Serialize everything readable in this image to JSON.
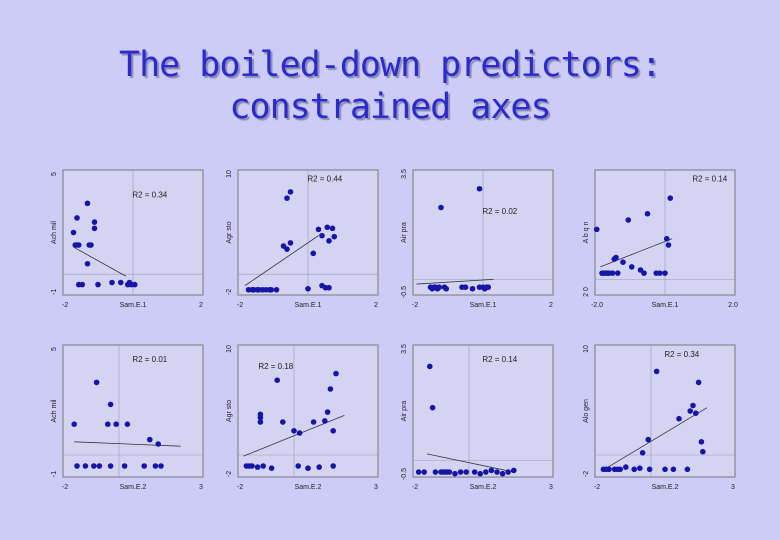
{
  "title": {
    "line1": "The boiled-down predictors:",
    "line2": "constrained axes"
  },
  "colors": {
    "background": "#ccccf6",
    "title": "#2a2ad0",
    "point": "#1515a8",
    "plot_bg": "#d4d4f2",
    "axis": "#777777",
    "text": "#222222"
  },
  "chart_data": [
    {
      "type": "scatter",
      "xlabel": "Sam.E.1",
      "ylabel": "Ach mil",
      "xlim": [
        -2,
        2
      ],
      "ylim": [
        -1,
        5
      ],
      "xtick_labels": [
        "-2",
        "Sam.E.1",
        "2"
      ],
      "ytick_labels": [
        "-1",
        "Ach mil",
        "5"
      ],
      "annotation": "R2 = 0.34",
      "fit": [
        [
          -1.7,
          1.3
        ],
        [
          -0.2,
          -0.1
        ]
      ],
      "points": [
        [
          -1.3,
          3.4
        ],
        [
          -1.1,
          2.5
        ],
        [
          -1.1,
          2.2
        ],
        [
          -1.2,
          1.4
        ],
        [
          -1.25,
          1.4
        ],
        [
          -1.3,
          0.5
        ],
        [
          -1.45,
          -0.5
        ],
        [
          -1.55,
          1.4
        ],
        [
          -1.6,
          1.4
        ],
        [
          -1.65,
          1.4
        ],
        [
          -1.7,
          2.0
        ],
        [
          -1.6,
          2.7
        ],
        [
          -1.55,
          -0.5
        ],
        [
          -1.0,
          -0.5
        ],
        [
          -0.6,
          -0.4
        ],
        [
          -0.35,
          -0.4
        ],
        [
          -0.15,
          -0.5
        ],
        [
          -0.05,
          -0.5
        ],
        [
          0.05,
          -0.5
        ],
        [
          -0.1,
          -0.4
        ]
      ]
    },
    {
      "type": "scatter",
      "xlabel": "Sam.E.1",
      "ylabel": "Agr sto",
      "xlim": [
        -2,
        2
      ],
      "ylim": [
        -2,
        10
      ],
      "xtick_labels": [
        "-2",
        "Sam.E.1",
        "2"
      ],
      "ytick_labels": [
        "-2",
        "Agr sto",
        "10"
      ],
      "annotation": "R2 = 0.44",
      "fit": [
        [
          -1.8,
          -1.1
        ],
        [
          0.3,
          3.7
        ]
      ],
      "points": [
        [
          -1.7,
          -1.5
        ],
        [
          -1.6,
          -1.5
        ],
        [
          -1.55,
          -1.5
        ],
        [
          -1.45,
          -1.5
        ],
        [
          -1.4,
          -1.5
        ],
        [
          -1.3,
          -1.5
        ],
        [
          -1.2,
          -1.5
        ],
        [
          -1.1,
          -1.5
        ],
        [
          -1.05,
          -1.5
        ],
        [
          -0.9,
          -1.5
        ],
        [
          -0.6,
          7.3
        ],
        [
          -0.5,
          7.9
        ],
        [
          -0.5,
          3.0
        ],
        [
          -0.7,
          2.7
        ],
        [
          -0.6,
          2.4
        ],
        [
          0.0,
          -1.4
        ],
        [
          0.15,
          2.0
        ],
        [
          0.3,
          4.3
        ],
        [
          0.4,
          3.7
        ],
        [
          0.55,
          4.5
        ],
        [
          0.6,
          3.2
        ],
        [
          0.4,
          -1.1
        ],
        [
          0.7,
          4.4
        ],
        [
          0.75,
          3.6
        ],
        [
          0.6,
          -1.3
        ],
        [
          0.5,
          -1.3
        ]
      ]
    },
    {
      "type": "scatter",
      "xlabel": "Sam.E.1",
      "ylabel": "Air pra",
      "xlim": [
        -2,
        2
      ],
      "ylim": [
        -0.5,
        3.5
      ],
      "xtick_labels": [
        "-2",
        "Sam.E.1",
        "2"
      ],
      "ytick_labels": [
        "-0.5",
        "Air pra",
        "3.5"
      ],
      "annotation": "R2 = 0.02",
      "fit": [
        [
          -1.9,
          -0.15
        ],
        [
          0.3,
          0.0
        ]
      ],
      "points": [
        [
          -1.2,
          2.3
        ],
        [
          -0.1,
          2.9
        ],
        [
          -1.5,
          -0.25
        ],
        [
          -1.45,
          -0.3
        ],
        [
          -1.4,
          -0.25
        ],
        [
          -1.35,
          -0.25
        ],
        [
          -1.3,
          -0.3
        ],
        [
          -1.25,
          -0.25
        ],
        [
          -1.1,
          -0.25
        ],
        [
          -1.05,
          -0.3
        ],
        [
          -0.6,
          -0.25
        ],
        [
          -0.5,
          -0.25
        ],
        [
          -0.3,
          -0.3
        ],
        [
          -0.1,
          -0.25
        ],
        [
          0.0,
          -0.25
        ],
        [
          0.05,
          -0.3
        ],
        [
          0.1,
          -0.25
        ],
        [
          0.15,
          -0.25
        ]
      ]
    },
    {
      "type": "scatter",
      "xlabel": "Sam.E.1",
      "ylabel": "A b q n",
      "xlim": [
        -2,
        2
      ],
      "ylim": [
        -0.5,
        3.5
      ],
      "xtick_labels": [
        "-2.0",
        "Sam.E.1",
        "2.0"
      ],
      "ytick_labels": [
        "2 0",
        "A b q n",
        ""
      ],
      "annotation": "R2 = 0.14",
      "fit": [
        [
          -1.85,
          0.4
        ],
        [
          0.2,
          1.3
        ]
      ],
      "points": [
        [
          -1.95,
          1.6
        ],
        [
          -1.8,
          0.2
        ],
        [
          -1.75,
          0.2
        ],
        [
          -1.7,
          0.2
        ],
        [
          -1.65,
          0.2
        ],
        [
          -1.6,
          0.2
        ],
        [
          -1.5,
          0.2
        ],
        [
          -1.45,
          0.65
        ],
        [
          -1.4,
          0.7
        ],
        [
          -1.35,
          0.2
        ],
        [
          -1.2,
          0.55
        ],
        [
          -1.05,
          1.9
        ],
        [
          -0.95,
          0.4
        ],
        [
          -0.7,
          0.3
        ],
        [
          -0.6,
          0.2
        ],
        [
          -0.5,
          2.1
        ],
        [
          -0.25,
          0.2
        ],
        [
          -0.15,
          0.2
        ],
        [
          0.05,
          1.3
        ],
        [
          0.1,
          1.1
        ],
        [
          0.15,
          2.6
        ],
        [
          0.0,
          0.2
        ]
      ]
    },
    {
      "type": "scatter",
      "xlabel": "Sam.E.2",
      "ylabel": "Ach mil",
      "xlim": [
        -2,
        3
      ],
      "ylim": [
        -1,
        5
      ],
      "xtick_labels": [
        "-2",
        "Sam.E.2",
        "3"
      ],
      "ytick_labels": [
        "-1",
        "Ach mil",
        "5"
      ],
      "annotation": "R2 = 0.01",
      "fit": [
        [
          -1.6,
          0.6
        ],
        [
          2.2,
          0.4
        ]
      ],
      "points": [
        [
          -1.6,
          1.4
        ],
        [
          -1.5,
          -0.5
        ],
        [
          -1.2,
          -0.5
        ],
        [
          -0.9,
          -0.5
        ],
        [
          -0.8,
          3.3
        ],
        [
          -0.7,
          -0.5
        ],
        [
          -0.4,
          1.4
        ],
        [
          -0.3,
          2.3
        ],
        [
          -0.3,
          -0.5
        ],
        [
          -0.1,
          1.4
        ],
        [
          0.2,
          -0.5
        ],
        [
          0.3,
          1.4
        ],
        [
          0.9,
          -0.5
        ],
        [
          1.1,
          0.7
        ],
        [
          1.3,
          -0.5
        ],
        [
          1.5,
          -0.5
        ],
        [
          1.4,
          0.5
        ]
      ]
    },
    {
      "type": "scatter",
      "xlabel": "Sam.E.2",
      "ylabel": "Agr sto",
      "xlim": [
        -2,
        3
      ],
      "ylim": [
        -2,
        10
      ],
      "xtick_labels": [
        "-2",
        "Sam.E.2",
        "3"
      ],
      "ytick_labels": [
        "-2",
        "Agr sto",
        "10"
      ],
      "annotation": "R2 = 0.18",
      "fit": [
        [
          -1.8,
          -0.1
        ],
        [
          1.8,
          3.6
        ]
      ],
      "points": [
        [
          -1.7,
          -1.0
        ],
        [
          -1.6,
          -1.0
        ],
        [
          -1.5,
          -1.0
        ],
        [
          -1.3,
          -1.1
        ],
        [
          -1.2,
          3.7
        ],
        [
          -1.2,
          3.4
        ],
        [
          -1.2,
          3.0
        ],
        [
          -1.1,
          -1.0
        ],
        [
          -0.8,
          -1.2
        ],
        [
          -0.6,
          6.8
        ],
        [
          -0.4,
          3.0
        ],
        [
          0.0,
          2.2
        ],
        [
          0.2,
          2.0
        ],
        [
          0.15,
          -1.0
        ],
        [
          0.5,
          -1.2
        ],
        [
          0.7,
          3.0
        ],
        [
          0.9,
          -1.1
        ],
        [
          1.1,
          3.1
        ],
        [
          1.2,
          3.9
        ],
        [
          1.3,
          6.0
        ],
        [
          1.4,
          2.2
        ],
        [
          1.4,
          -1.0
        ],
        [
          1.5,
          7.4
        ]
      ]
    },
    {
      "type": "scatter",
      "xlabel": "Sam.E.2",
      "ylabel": "Air pra",
      "xlim": [
        -2,
        3
      ],
      "ylim": [
        -0.5,
        3.5
      ],
      "xtick_labels": [
        "-2",
        "Sam.E.2",
        "3"
      ],
      "ytick_labels": [
        "-0.5",
        "Air pra",
        "3.5"
      ],
      "annotation": "R2 = 0.14",
      "fit": [
        [
          -1.5,
          0.2
        ],
        [
          1.6,
          -0.35
        ]
      ],
      "points": [
        [
          -1.8,
          -0.35
        ],
        [
          -1.6,
          -0.35
        ],
        [
          -1.4,
          2.85
        ],
        [
          -1.3,
          1.6
        ],
        [
          -1.2,
          -0.35
        ],
        [
          -1.0,
          -0.35
        ],
        [
          -0.9,
          -0.35
        ],
        [
          -0.8,
          -0.35
        ],
        [
          -0.7,
          -0.35
        ],
        [
          -0.5,
          -0.4
        ],
        [
          -0.3,
          -0.35
        ],
        [
          -0.1,
          -0.35
        ],
        [
          0.2,
          -0.35
        ],
        [
          0.4,
          -0.4
        ],
        [
          0.6,
          -0.35
        ],
        [
          0.8,
          -0.3
        ],
        [
          1.0,
          -0.35
        ],
        [
          1.2,
          -0.4
        ],
        [
          1.4,
          -0.35
        ],
        [
          1.6,
          -0.3
        ]
      ]
    },
    {
      "type": "scatter",
      "xlabel": "Sam.E.2",
      "ylabel": "Alo gen",
      "xlim": [
        -2,
        3
      ],
      "ylim": [
        -2,
        10
      ],
      "xtick_labels": [
        "-2",
        "Sam.E.2",
        "3"
      ],
      "ytick_labels": [
        "-2",
        "Alo gen",
        "10"
      ],
      "annotation": "R2 = 0.34",
      "fit": [
        [
          -1.6,
          -1.2
        ],
        [
          2.0,
          4.3
        ]
      ],
      "points": [
        [
          -1.7,
          -1.3
        ],
        [
          -1.6,
          -1.3
        ],
        [
          -1.5,
          -1.3
        ],
        [
          -1.3,
          -1.3
        ],
        [
          -1.2,
          -1.3
        ],
        [
          -1.1,
          -1.3
        ],
        [
          -0.9,
          -1.1
        ],
        [
          -0.6,
          -1.3
        ],
        [
          -0.4,
          -1.2
        ],
        [
          -0.3,
          0.2
        ],
        [
          -0.1,
          1.4
        ],
        [
          -0.05,
          -1.3
        ],
        [
          0.2,
          7.6
        ],
        [
          0.5,
          -1.3
        ],
        [
          0.8,
          -1.3
        ],
        [
          1.0,
          3.3
        ],
        [
          1.3,
          -1.3
        ],
        [
          1.4,
          4.0
        ],
        [
          1.5,
          4.5
        ],
        [
          1.6,
          3.8
        ],
        [
          1.7,
          6.6
        ],
        [
          1.8,
          1.2
        ],
        [
          1.85,
          0.3
        ]
      ]
    }
  ]
}
